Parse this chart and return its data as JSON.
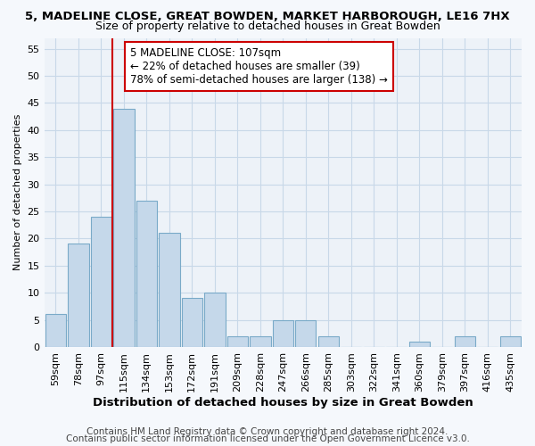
{
  "title": "5, MADELINE CLOSE, GREAT BOWDEN, MARKET HARBOROUGH, LE16 7HX",
  "subtitle": "Size of property relative to detached houses in Great Bowden",
  "xlabel": "Distribution of detached houses by size in Great Bowden",
  "ylabel": "Number of detached properties",
  "categories": [
    "59sqm",
    "78sqm",
    "97sqm",
    "115sqm",
    "134sqm",
    "153sqm",
    "172sqm",
    "191sqm",
    "209sqm",
    "228sqm",
    "247sqm",
    "266sqm",
    "285sqm",
    "303sqm",
    "322sqm",
    "341sqm",
    "360sqm",
    "379sqm",
    "397sqm",
    "416sqm",
    "435sqm"
  ],
  "values": [
    6,
    19,
    24,
    44,
    27,
    21,
    9,
    10,
    2,
    2,
    5,
    5,
    2,
    0,
    0,
    0,
    1,
    0,
    2,
    0,
    2
  ],
  "bar_color": "#c5d8ea",
  "bar_edge_color": "#7aaac8",
  "vline_x": 2.5,
  "vline_color": "#cc0000",
  "annotation_line1": "5 MADELINE CLOSE: 107sqm",
  "annotation_line2": "← 22% of detached houses are smaller (39)",
  "annotation_line3": "78% of semi-detached houses are larger (138) →",
  "annotation_box_color": "#ffffff",
  "annotation_box_edge": "#cc0000",
  "ylim": [
    0,
    57
  ],
  "yticks": [
    0,
    5,
    10,
    15,
    20,
    25,
    30,
    35,
    40,
    45,
    50,
    55
  ],
  "footer1": "Contains HM Land Registry data © Crown copyright and database right 2024.",
  "footer2": "Contains public sector information licensed under the Open Government Licence v3.0.",
  "bg_color": "#f5f8fc",
  "plot_bg_color": "#edf2f8",
  "grid_color": "#c8d8e8",
  "title_fontsize": 9.5,
  "subtitle_fontsize": 9,
  "xlabel_fontsize": 9.5,
  "ylabel_fontsize": 8,
  "tick_fontsize": 8,
  "annotation_fontsize": 8.5,
  "footer_fontsize": 7.5
}
